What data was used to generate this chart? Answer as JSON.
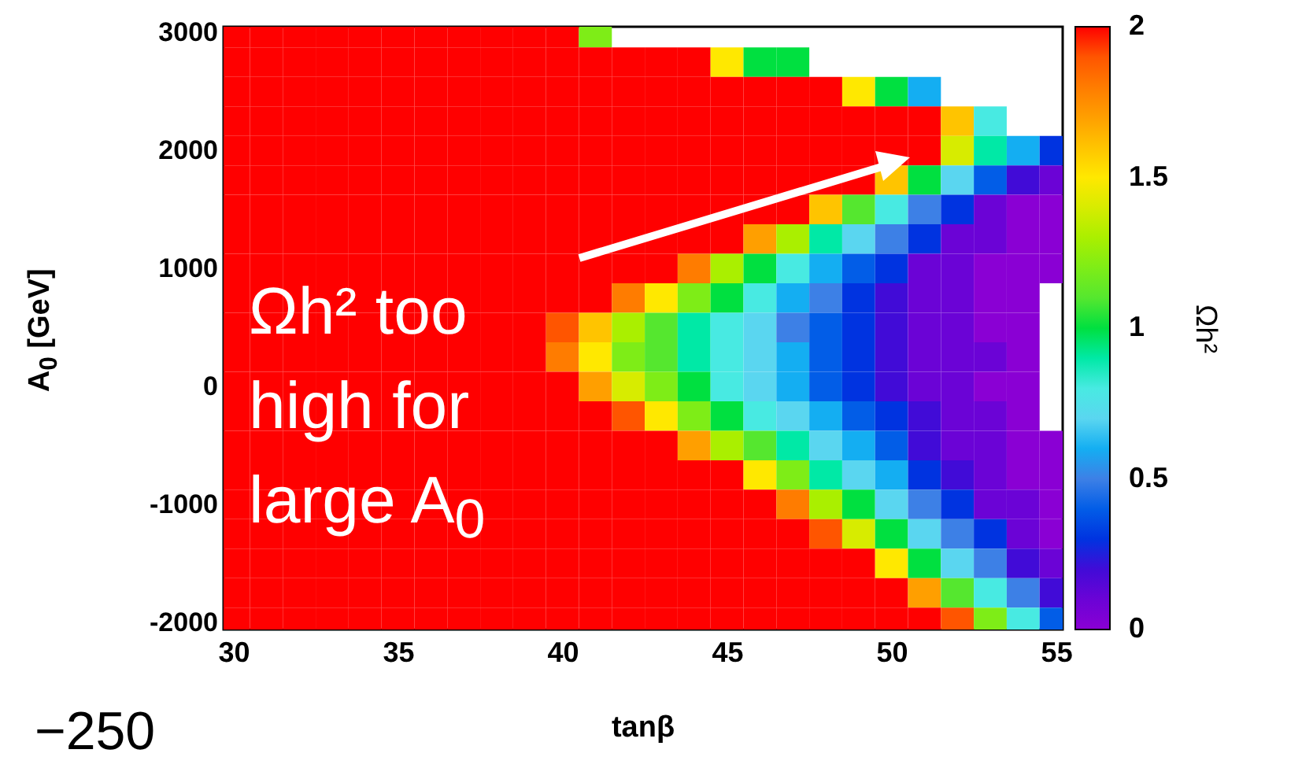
{
  "chart_data": {
    "type": "heatmap",
    "xlabel": "tanβ",
    "ylabel": "A$_{0}$ [GeV]",
    "clabel": "Ωh²",
    "x": [
      30,
      31,
      32,
      33,
      34,
      35,
      36,
      37,
      38,
      39,
      40,
      41,
      42,
      43,
      44,
      45,
      46,
      47,
      48,
      49,
      50,
      51,
      52,
      53,
      54,
      55
    ],
    "y": [
      3000,
      2750,
      2500,
      2250,
      2000,
      1750,
      1500,
      1250,
      1000,
      750,
      500,
      250,
      0,
      -250,
      -500,
      -750,
      -1000,
      -1250,
      -1500,
      -1750,
      -2000
    ],
    "cells": [
      [
        2,
        2,
        2,
        2,
        2,
        2,
        2,
        2,
        2,
        2,
        2,
        1.2,
        null,
        null,
        null,
        null,
        null,
        null,
        null,
        null,
        null,
        null,
        null,
        null,
        null,
        null
      ],
      [
        2,
        2,
        2,
        2,
        2,
        2,
        2,
        2,
        2,
        2,
        2,
        2,
        2,
        2,
        2,
        1.5,
        1,
        1,
        null,
        null,
        null,
        null,
        null,
        null,
        null,
        null
      ],
      [
        2,
        2,
        2,
        2,
        2,
        2,
        2,
        2,
        2,
        2,
        2,
        2,
        2,
        2,
        2,
        2,
        2,
        2,
        2,
        1.5,
        1,
        0.6,
        null,
        null,
        null,
        null
      ],
      [
        2,
        2,
        2,
        2,
        2,
        2,
        2,
        2,
        2,
        2,
        2,
        2,
        2,
        2,
        2,
        2,
        2,
        2,
        2,
        2,
        2,
        2,
        1.6,
        0.8,
        null,
        null
      ],
      [
        2,
        2,
        2,
        2,
        2,
        2,
        2,
        2,
        2,
        2,
        2,
        2,
        2,
        2,
        2,
        2,
        2,
        2,
        2,
        2,
        2,
        2,
        1.4,
        0.9,
        0.6,
        0.3
      ],
      [
        2,
        2,
        2,
        2,
        2,
        2,
        2,
        2,
        2,
        2,
        2,
        2,
        2,
        2,
        2,
        2,
        2,
        2,
        2,
        2,
        1.6,
        1,
        0.7,
        0.4,
        0.2,
        0.1
      ],
      [
        2,
        2,
        2,
        2,
        2,
        2,
        2,
        2,
        2,
        2,
        2,
        2,
        2,
        2,
        2,
        2,
        2,
        2,
        1.6,
        1.1,
        0.8,
        0.5,
        0.3,
        0.1,
        0,
        0
      ],
      [
        2,
        2,
        2,
        2,
        2,
        2,
        2,
        2,
        2,
        2,
        2,
        2,
        2,
        2,
        2,
        2,
        1.7,
        1.3,
        0.9,
        0.7,
        0.5,
        0.3,
        0.1,
        0.1,
        0,
        0
      ],
      [
        2,
        2,
        2,
        2,
        2,
        2,
        2,
        2,
        2,
        2,
        2,
        2,
        2,
        2,
        1.8,
        1.3,
        1,
        0.8,
        0.6,
        0.4,
        0.3,
        0.1,
        0.1,
        0,
        0,
        0
      ],
      [
        2,
        2,
        2,
        2,
        2,
        2,
        2,
        2,
        2,
        2,
        2,
        2,
        1.8,
        1.5,
        1.2,
        1,
        0.8,
        0.6,
        0.5,
        0.3,
        0.2,
        0.1,
        0.1,
        0,
        0,
        null
      ],
      [
        2,
        2,
        2,
        2,
        2,
        2,
        2,
        2,
        2,
        2,
        1.9,
        1.6,
        1.3,
        1.1,
        0.9,
        0.8,
        0.7,
        0.5,
        0.4,
        0.3,
        0.2,
        0.1,
        0.1,
        0,
        0,
        null
      ],
      [
        2,
        2,
        2,
        2,
        2,
        2,
        2,
        2,
        2,
        2,
        1.8,
        1.5,
        1.2,
        1.1,
        0.9,
        0.8,
        0.7,
        0.6,
        0.4,
        0.3,
        0.2,
        0.1,
        0.1,
        0.1,
        0,
        null
      ],
      [
        2,
        2,
        2,
        2,
        2,
        2,
        2,
        2,
        2,
        2,
        2,
        1.7,
        1.4,
        1.2,
        1,
        0.8,
        0.7,
        0.6,
        0.4,
        0.3,
        0.2,
        0.1,
        0.1,
        0,
        0,
        null
      ],
      [
        2,
        2,
        2,
        2,
        2,
        2,
        2,
        2,
        2,
        2,
        2,
        2,
        1.9,
        1.5,
        1.2,
        1,
        0.8,
        0.7,
        0.6,
        0.4,
        0.3,
        0.2,
        0.1,
        0.1,
        0,
        null
      ],
      [
        2,
        2,
        2,
        2,
        2,
        2,
        2,
        2,
        2,
        2,
        2,
        2,
        2,
        2,
        1.7,
        1.3,
        1.1,
        0.9,
        0.7,
        0.6,
        0.4,
        0.2,
        0.1,
        0.1,
        0,
        0
      ],
      [
        2,
        2,
        2,
        2,
        2,
        2,
        2,
        2,
        2,
        2,
        2,
        2,
        2,
        2,
        2,
        2,
        1.5,
        1.2,
        0.9,
        0.7,
        0.6,
        0.3,
        0.2,
        0.1,
        0,
        0
      ],
      [
        2,
        2,
        2,
        2,
        2,
        2,
        2,
        2,
        2,
        2,
        2,
        2,
        2,
        2,
        2,
        2,
        2,
        1.8,
        1.3,
        1,
        0.7,
        0.5,
        0.3,
        0.1,
        0.1,
        0
      ],
      [
        2,
        2,
        2,
        2,
        2,
        2,
        2,
        2,
        2,
        2,
        2,
        2,
        2,
        2,
        2,
        2,
        2,
        2,
        1.9,
        1.4,
        1,
        0.7,
        0.5,
        0.3,
        0.1,
        0
      ],
      [
        2,
        2,
        2,
        2,
        2,
        2,
        2,
        2,
        2,
        2,
        2,
        2,
        2,
        2,
        2,
        2,
        2,
        2,
        2,
        2,
        1.5,
        1,
        0.7,
        0.5,
        0.2,
        0.1
      ],
      [
        2,
        2,
        2,
        2,
        2,
        2,
        2,
        2,
        2,
        2,
        2,
        2,
        2,
        2,
        2,
        2,
        2,
        2,
        2,
        2,
        2,
        1.7,
        1.1,
        0.8,
        0.5,
        0.2
      ],
      [
        2,
        2,
        2,
        2,
        2,
        2,
        2,
        2,
        2,
        2,
        2,
        2,
        2,
        2,
        2,
        2,
        2,
        2,
        2,
        2,
        2,
        2,
        1.9,
        1.2,
        0.8,
        0.4
      ]
    ],
    "xlim": [
      29.7,
      55.2
    ],
    "xticks": [
      30,
      35,
      40,
      45,
      50,
      55
    ],
    "ylim": [
      -2060,
      3050
    ],
    "yticks": [
      -2000,
      -1000,
      0,
      1000,
      2000,
      3000
    ],
    "clim": [
      0,
      2
    ],
    "cticks": [
      0,
      0.5,
      1,
      1.5,
      2
    ],
    "colors": [
      "#8a00d4",
      "#1a10d8",
      "#3d80e6",
      "#80e8f0",
      "#00e040",
      "#90f000",
      "#ffe800",
      "#ff8c00",
      "#ff0000"
    ],
    "annotations": [
      "Ωh² too high for large A$_{0}$",
      "−250"
    ]
  }
}
